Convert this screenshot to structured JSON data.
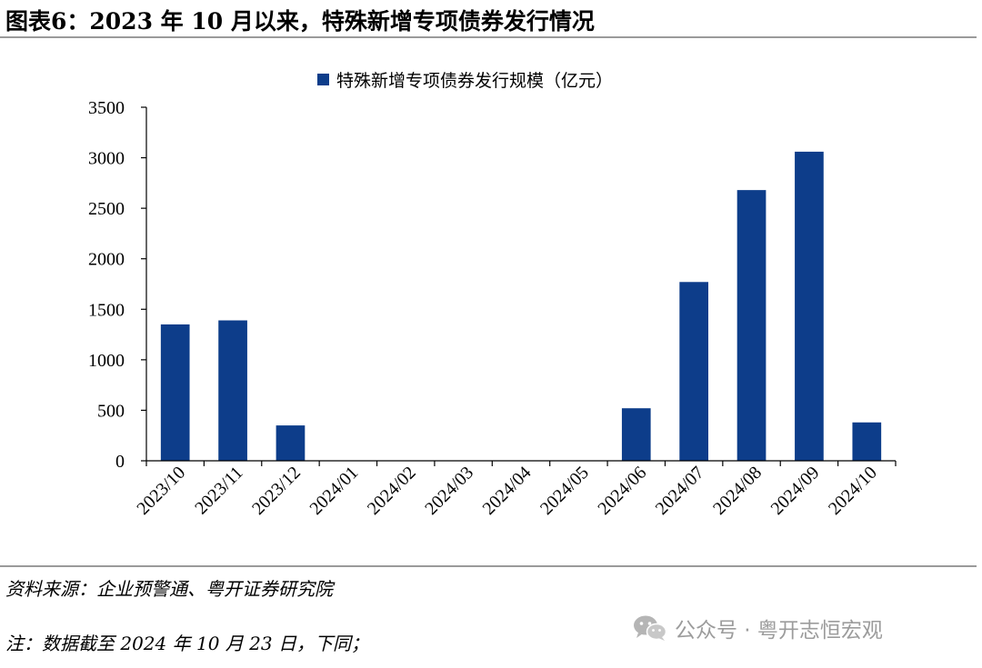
{
  "header": {
    "title": "图表6：2023 年 10 月以来，特殊新增专项债券发行情况"
  },
  "chart_data": {
    "type": "bar",
    "categories": [
      "2023/10",
      "2023/11",
      "2023/12",
      "2024/01",
      "2024/02",
      "2024/03",
      "2024/04",
      "2024/05",
      "2024/06",
      "2024/07",
      "2024/08",
      "2024/09",
      "2024/10"
    ],
    "series": [
      {
        "name": "特殊新增专项债券发行规模（亿元）",
        "values": [
          1350,
          1390,
          350,
          0,
          0,
          0,
          0,
          0,
          520,
          1770,
          2680,
          3060,
          380
        ],
        "color": "#0d3d8a"
      }
    ],
    "yticks": [
      "0",
      "500",
      "1000",
      "1500",
      "2000",
      "2500",
      "3000",
      "3500"
    ],
    "ylim": [
      0,
      3500
    ],
    "legend_position": "top-center",
    "grid": false,
    "xlabel": "",
    "ylabel": ""
  },
  "footer": {
    "source": "资料来源：企业预警通、粤开证券研究院",
    "note": "注：数据截至 2024 年 10 月 23 日，下同；"
  },
  "watermark": {
    "text": "公众号 · 粤开志恒宏观",
    "icon": "wechat-icon"
  }
}
